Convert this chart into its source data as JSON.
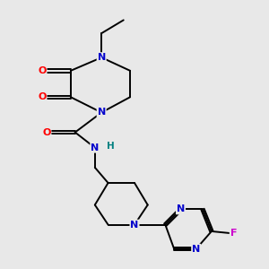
{
  "background_color": "#e8e8e8",
  "atom_colors": {
    "N": "#0000cc",
    "O": "#ff0000",
    "F": "#cc00cc",
    "C": "#000000",
    "H": "#008080"
  },
  "bond_color": "#000000",
  "bond_width": 1.4,
  "figsize": [
    3.0,
    3.0
  ],
  "dpi": 100
}
